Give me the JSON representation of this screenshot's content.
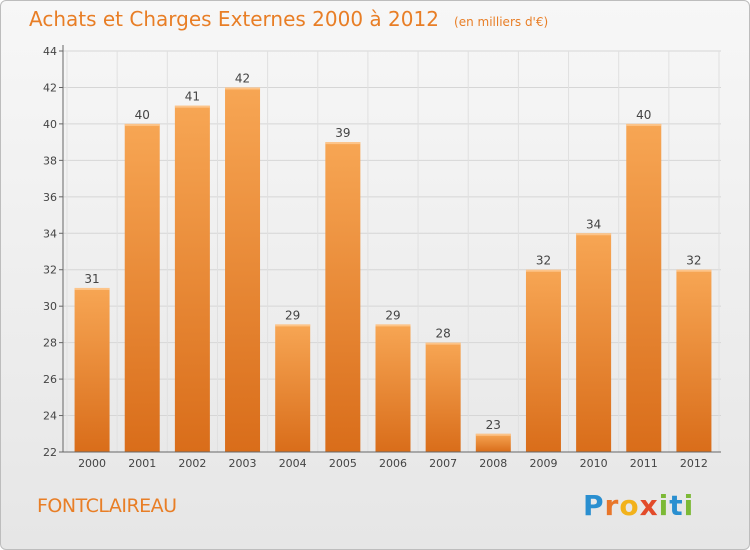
{
  "chart_data": {
    "type": "bar",
    "title": "Achats et Charges Externes 2000 à 2012",
    "subtitle": "(en milliers d'€)",
    "categories": [
      "2000",
      "2001",
      "2002",
      "2003",
      "2004",
      "2005",
      "2006",
      "2007",
      "2008",
      "2009",
      "2010",
      "2011",
      "2012"
    ],
    "values": [
      31,
      40,
      41,
      42,
      29,
      39,
      29,
      28,
      23,
      32,
      34,
      40,
      32
    ],
    "ylim": [
      22,
      44
    ],
    "yticks": [
      22,
      24,
      26,
      28,
      30,
      32,
      34,
      36,
      38,
      40,
      42,
      44
    ],
    "grid": true,
    "bar_color_top": "#f7a654",
    "bar_color_bottom": "#d96d1a"
  },
  "commune": "FONTCLAIREAU",
  "logo": {
    "letters": [
      "P",
      "r",
      "o",
      "x",
      "i",
      "t",
      "i"
    ],
    "colors": [
      "#2a8fd0",
      "#e8762a",
      "#f2b21b",
      "#e24b2a",
      "#7cb936",
      "#2a8fd0",
      "#7cb936"
    ]
  }
}
